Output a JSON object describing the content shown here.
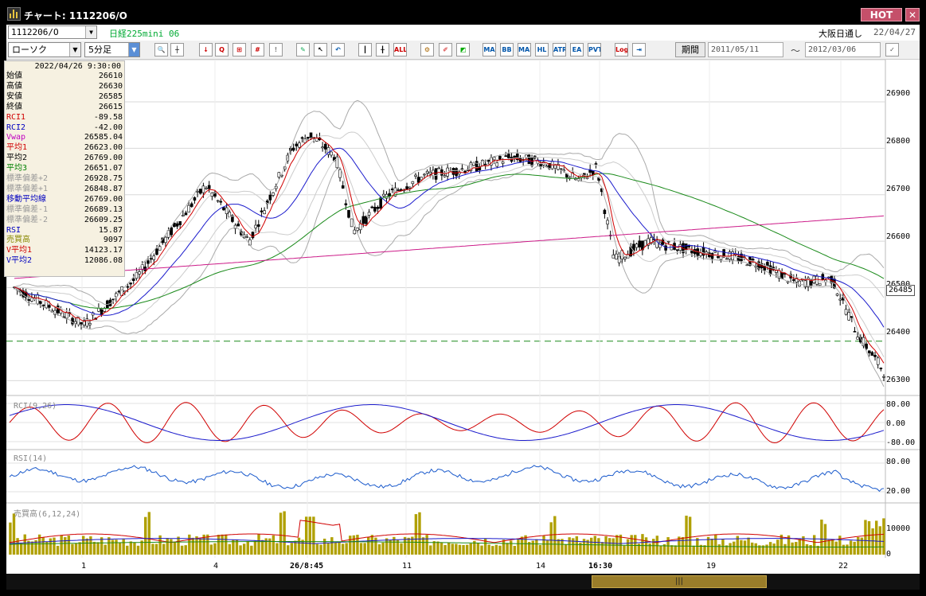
{
  "window": {
    "title": "チャート: 1112206/O",
    "hot_label": "HOT",
    "close_label": "✕"
  },
  "header": {
    "symbol": "1112206/O",
    "symbol_name": "日経225mini 06",
    "market": "大阪日通し",
    "date": "22/04/27"
  },
  "toolbar": {
    "chart_type": "ローソク",
    "interval": "5分足",
    "period_label": "期間",
    "date_from": "2011/05/11",
    "date_to": "2012/03/06",
    "tilde": "〜",
    "buttons": [
      "ALL",
      "MA",
      "BB",
      "MAE",
      "HL",
      "ATR",
      "EA RA",
      "PVT",
      "Log"
    ]
  },
  "data_panel": {
    "timestamp": "2022/04/26 9:30:00",
    "rows": [
      {
        "label": "始値",
        "value": "26610",
        "color": "#000000"
      },
      {
        "label": "高値",
        "value": "26630",
        "color": "#000000"
      },
      {
        "label": "安値",
        "value": "26585",
        "color": "#000000"
      },
      {
        "label": "終値",
        "value": "26615",
        "color": "#000000"
      },
      {
        "label": "RCI1",
        "value": "-89.58",
        "color": "#d00000"
      },
      {
        "label": "RCI2",
        "value": "-42.00",
        "color": "#0000c0"
      },
      {
        "label": "Vwap",
        "value": "26585.04",
        "color": "#c000c0"
      },
      {
        "label": "平均1",
        "value": "26623.00",
        "color": "#d00000"
      },
      {
        "label": "平均2",
        "value": "26769.00",
        "color": "#000000"
      },
      {
        "label": "平均3",
        "value": "26651.07",
        "color": "#008000"
      },
      {
        "label": "標準偏差+2",
        "value": "26928.75",
        "color": "#999999"
      },
      {
        "label": "標準偏差+1",
        "value": "26848.87",
        "color": "#999999"
      },
      {
        "label": "移動平均線",
        "value": "26769.00",
        "color": "#0000c0"
      },
      {
        "label": "標準偏差-1",
        "value": "26689.13",
        "color": "#999999"
      },
      {
        "label": "標準偏差-2",
        "value": "26609.25",
        "color": "#999999"
      },
      {
        "label": "RSI",
        "value": "15.87",
        "color": "#0000c0"
      },
      {
        "label": "売買高",
        "value": "9097",
        "color": "#888800"
      },
      {
        "label": "V平均1",
        "value": "14123.17",
        "color": "#d00000"
      },
      {
        "label": "V平均2",
        "value": "12086.08",
        "color": "#0000c0"
      }
    ]
  },
  "panes": {
    "rci_label": "RCI(9,26)",
    "rsi_label": "RSI(14)",
    "vol_label": "売買高(6,12,24)"
  },
  "price_axis": {
    "labels": [
      "26900",
      "26800",
      "26700",
      "26600",
      "26500",
      "26400",
      "26300"
    ],
    "last_price": "26485"
  },
  "rci_axis": [
    "80.00",
    "0.00",
    "-80.00"
  ],
  "rsi_axis": [
    "80.00",
    "20.00"
  ],
  "vol_axis": [
    "10000",
    "0"
  ],
  "x_axis": [
    {
      "label": "1",
      "bold": false
    },
    {
      "label": "4",
      "bold": false
    },
    {
      "label": "26/8:45",
      "bold": true
    },
    {
      "label": "11",
      "bold": false
    },
    {
      "label": "14",
      "bold": false
    },
    {
      "label": "16:30",
      "bold": true
    },
    {
      "label": "19",
      "bold": false
    },
    {
      "label": "22",
      "bold": false
    }
  ],
  "scroll": {
    "thumb_label": "|||"
  },
  "colors": {
    "ma_short": "#d00000",
    "ma_mid": "#1a1acc",
    "ma_long": "#1a8a1a",
    "vwap": "#cc1a88",
    "band": "#aaaaaa",
    "dashed_line": "#1a8a1a",
    "volume_bar": "#b0a000"
  },
  "chart_data": {
    "type": "candlestick",
    "y_range": [
      26280,
      26960
    ],
    "reference_line": 26385,
    "series_summary": "5-minute candles of 日経225mini 06, multiple sessions",
    "key_levels_y": [
      26300,
      26400,
      26500,
      26600,
      26700,
      26800,
      26900
    ]
  }
}
